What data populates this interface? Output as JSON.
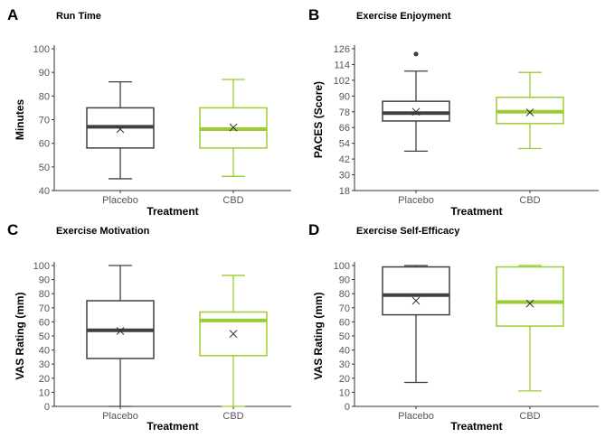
{
  "colors": {
    "placebo": "#404040",
    "cbd": "#9acd32",
    "axis": "#333333",
    "tick_text": "#555555",
    "background": "#ffffff"
  },
  "chart_data": [
    {
      "type": "box",
      "panel": "A",
      "title": "Run Time",
      "xlabel": "Treatment",
      "ylabel": "Minutes",
      "ylim": [
        40,
        100
      ],
      "yticks": [
        40,
        50,
        60,
        70,
        80,
        90,
        100
      ],
      "categories": [
        "Placebo",
        "CBD"
      ],
      "boxes": [
        {
          "group": "Placebo",
          "whisker_low": 45,
          "q1": 58,
          "median": 67,
          "q3": 75,
          "whisker_high": 86,
          "mean": 66,
          "outliers": []
        },
        {
          "group": "CBD",
          "whisker_low": 46,
          "q1": 58,
          "median": 66,
          "q3": 75,
          "whisker_high": 87,
          "mean": 66.7,
          "outliers": []
        }
      ]
    },
    {
      "type": "box",
      "panel": "B",
      "title": "Exercise Enjoyment",
      "xlabel": "Treatment",
      "ylabel": "PACES (Score)",
      "ylim": [
        18,
        126
      ],
      "yticks": [
        18,
        30,
        42,
        54,
        66,
        78,
        90,
        102,
        114,
        126
      ],
      "categories": [
        "Placebo",
        "CBD"
      ],
      "boxes": [
        {
          "group": "Placebo",
          "whisker_low": 48,
          "q1": 71,
          "median": 77,
          "q3": 86,
          "whisker_high": 109,
          "mean": 78,
          "outliers": [
            122
          ]
        },
        {
          "group": "CBD",
          "whisker_low": 50,
          "q1": 69,
          "median": 78,
          "q3": 89,
          "whisker_high": 108,
          "mean": 77.5,
          "outliers": []
        }
      ]
    },
    {
      "type": "box",
      "panel": "C",
      "title": "Exercise Motivation",
      "xlabel": "Treatment",
      "ylabel": "VAS Rating (mm)",
      "ylim": [
        0,
        100
      ],
      "yticks": [
        0,
        10,
        20,
        30,
        40,
        50,
        60,
        70,
        80,
        90,
        100
      ],
      "categories": [
        "Placebo",
        "CBD"
      ],
      "boxes": [
        {
          "group": "Placebo",
          "whisker_low": 0,
          "q1": 34,
          "median": 54,
          "q3": 75,
          "whisker_high": 100,
          "mean": 53.5,
          "outliers": []
        },
        {
          "group": "CBD",
          "whisker_low": 0,
          "q1": 36,
          "median": 61,
          "q3": 67,
          "whisker_high": 93,
          "mean": 51.5,
          "outliers": []
        }
      ]
    },
    {
      "type": "box",
      "panel": "D",
      "title": "Exercise Self-Efficacy",
      "xlabel": "Treatment",
      "ylabel": "VAS Rating (mm)",
      "ylim": [
        0,
        100
      ],
      "yticks": [
        0,
        10,
        20,
        30,
        40,
        50,
        60,
        70,
        80,
        90,
        100
      ],
      "categories": [
        "Placebo",
        "CBD"
      ],
      "boxes": [
        {
          "group": "Placebo",
          "whisker_low": 17,
          "q1": 65,
          "median": 79,
          "q3": 99,
          "whisker_high": 100,
          "mean": 75,
          "outliers": []
        },
        {
          "group": "CBD",
          "whisker_low": 11,
          "q1": 57,
          "median": 74,
          "q3": 99,
          "whisker_high": 100,
          "mean": 73,
          "outliers": []
        }
      ]
    }
  ]
}
